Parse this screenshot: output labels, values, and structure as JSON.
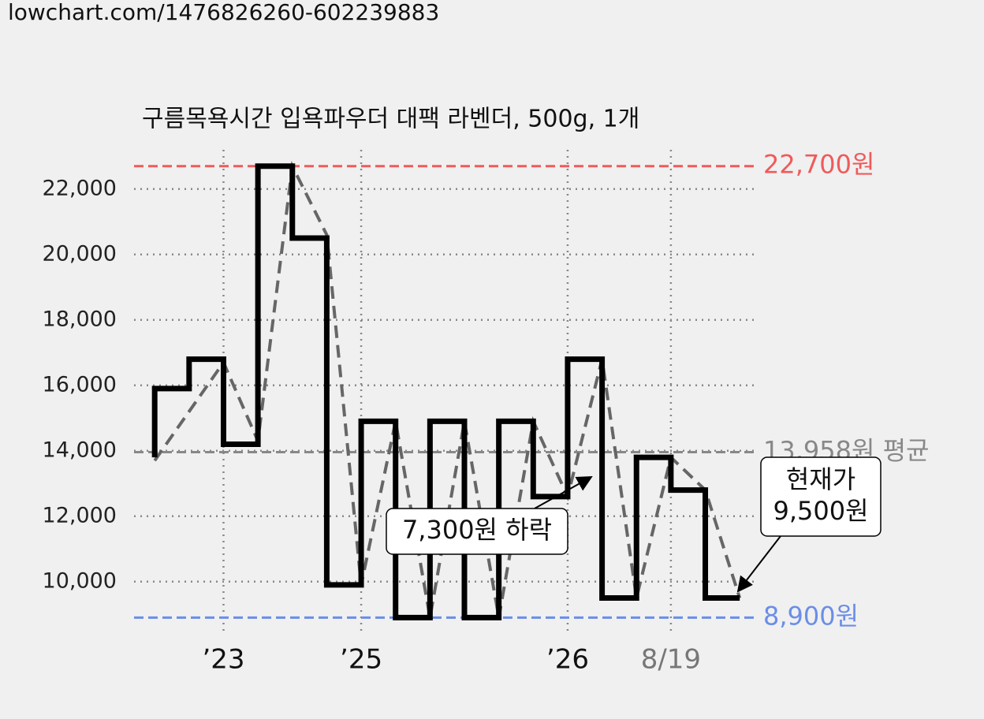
{
  "header": {
    "url": "lowchart.com/1476826260-602239883"
  },
  "chart_data": {
    "type": "step-line",
    "title": "구름목욕시간 입욕파우더 대팩 라벤더, 500g, 1개",
    "series": [
      {
        "style": "solid",
        "color": "#000000",
        "x": [
          0,
          0,
          1,
          2,
          3,
          4,
          5,
          6,
          7,
          8,
          9,
          10,
          11,
          12,
          13,
          14,
          15,
          16,
          17
        ],
        "values": [
          13800,
          15900,
          16800,
          14200,
          22700,
          20500,
          9900,
          14900,
          8900,
          14900,
          8900,
          14900,
          12600,
          16800,
          9500,
          13800,
          12800,
          9500,
          9500
        ]
      },
      {
        "style": "dashed",
        "color": "#666666",
        "x": [
          0,
          2,
          3,
          4,
          5,
          6,
          7,
          8,
          9,
          10,
          11,
          12,
          13,
          14,
          15,
          16,
          17
        ],
        "values": [
          13700,
          16700,
          14300,
          22700,
          20600,
          9900,
          14900,
          8900,
          14900,
          8900,
          14900,
          12600,
          16800,
          9500,
          13800,
          12800,
          9500
        ]
      }
    ],
    "xlim": [
      -0.6,
      17.5
    ],
    "xticks": [
      {
        "value": 2,
        "label": "’23"
      },
      {
        "value": 6,
        "label": "’25"
      },
      {
        "value": 12,
        "label": "’26"
      },
      {
        "value": 15,
        "label": "8/19"
      }
    ],
    "ylim": [
      8500,
      23200
    ],
    "yticks": [
      {
        "value": 10000,
        "label": "10,000"
      },
      {
        "value": 12000,
        "label": "12,000"
      },
      {
        "value": 14000,
        "label": "14,000"
      },
      {
        "value": 16000,
        "label": "16,000"
      },
      {
        "value": 18000,
        "label": "18,000"
      },
      {
        "value": 20000,
        "label": "20,000"
      },
      {
        "value": 22000,
        "label": "22,000"
      }
    ],
    "grid": true,
    "reference_lines": [
      {
        "value": 22700,
        "label": "22,700원",
        "color": "#f05a5a"
      },
      {
        "value": 13958,
        "label": "13,958원 평균",
        "color": "#888888"
      },
      {
        "value": 8900,
        "label": "8,900원",
        "color": "#6a8ee8"
      }
    ],
    "annotations": [
      {
        "text": [
          "7,300원 하락"
        ]
      },
      {
        "text": [
          "현재가",
          "9,500원"
        ]
      }
    ]
  }
}
